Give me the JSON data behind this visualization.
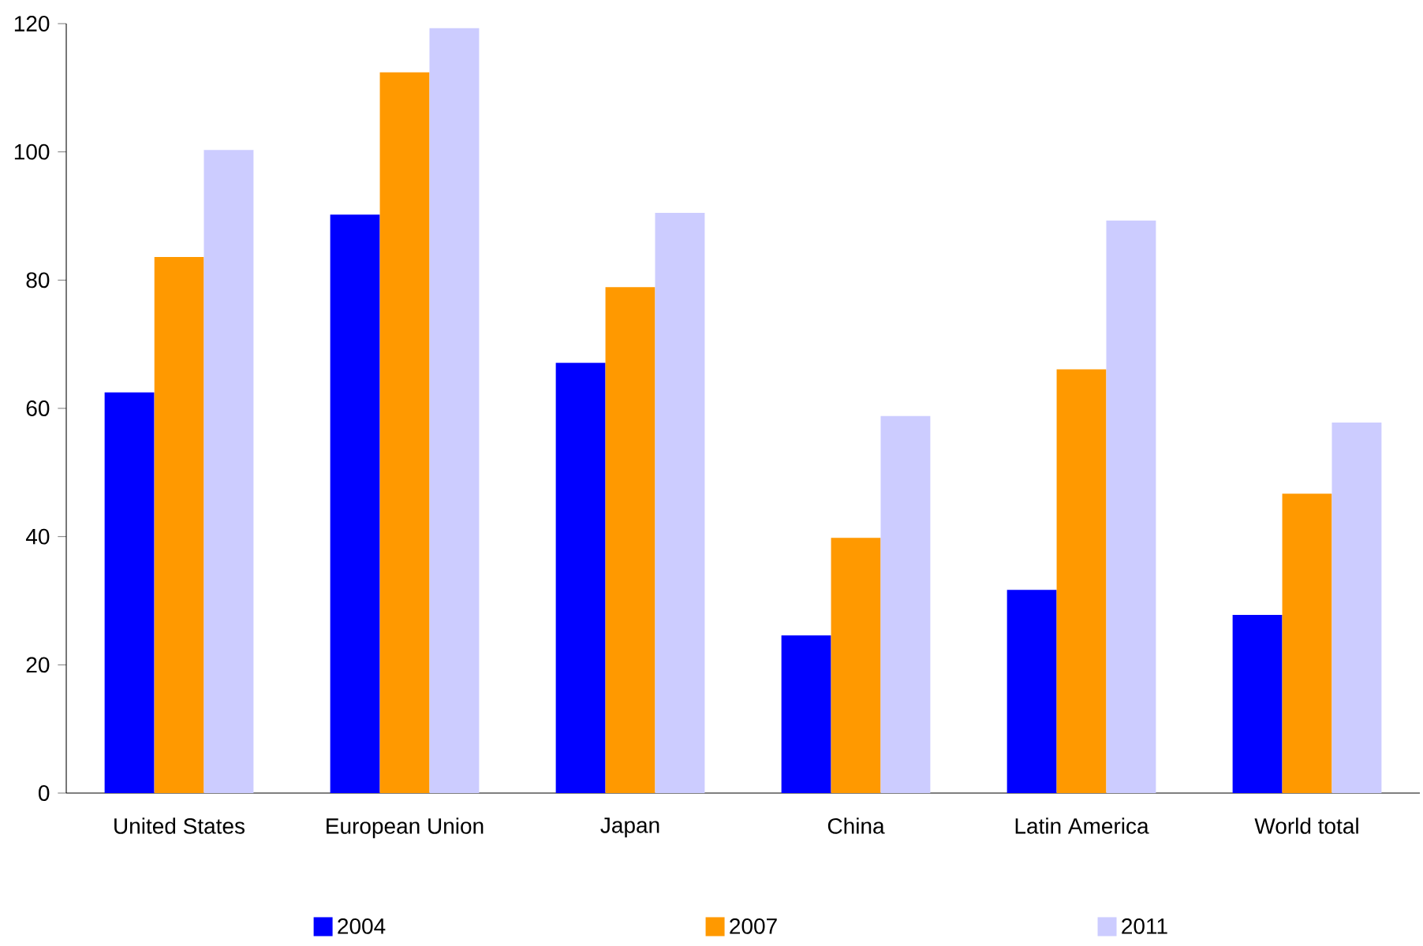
{
  "chart_data": {
    "type": "bar",
    "categories": [
      "United States",
      "European Union",
      "Japan",
      "China",
      "Latin America",
      "World total"
    ],
    "series": [
      {
        "name": "2004",
        "color": "#0000ff",
        "values": [
          62.5,
          90.2,
          67.1,
          24.6,
          31.7,
          27.8
        ]
      },
      {
        "name": "2007",
        "color": "#ff9900",
        "values": [
          83.6,
          112.4,
          78.9,
          39.8,
          66.1,
          46.7
        ]
      },
      {
        "name": "2011",
        "color": "#ccccff",
        "values": [
          100.3,
          119.3,
          90.5,
          58.8,
          89.3,
          57.8
        ]
      }
    ],
    "ylim": [
      0,
      120
    ],
    "yticks": [
      0,
      20,
      40,
      60,
      80,
      100,
      120
    ],
    "grid": false,
    "legend": "bottom"
  }
}
